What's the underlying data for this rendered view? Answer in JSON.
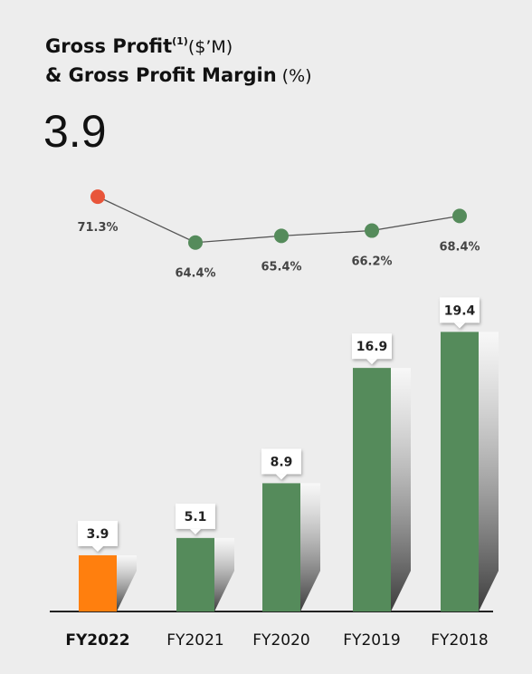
{
  "chart_data": {
    "type": "bar",
    "title": "Gross Profit",
    "title_superscript": "(1)",
    "title_unit": "($’M)",
    "subtitle": "& Gross Profit Margin",
    "subtitle_unit": "(%)",
    "headline": "3.9",
    "categories": [
      "FY2022",
      "FY2021",
      "FY2020",
      "FY2019",
      "FY2018"
    ],
    "ylim": [
      0,
      22
    ],
    "y2lim": [
      60,
      75
    ],
    "series": [
      {
        "name": "Gross Profit",
        "type": "bar",
        "values": [
          3.9,
          5.1,
          8.9,
          16.9,
          19.4
        ],
        "colors": [
          "#ff7f0e",
          "#558b5b",
          "#558b5b",
          "#558b5b",
          "#558b5b"
        ]
      },
      {
        "name": "Gross Profit Margin",
        "type": "line",
        "axis": "y2",
        "color": "#555555",
        "values": [
          71.3,
          64.4,
          65.4,
          66.2,
          68.4
        ],
        "value_labels": [
          "71.3%",
          "64.4%",
          "65.4%",
          "66.2%",
          "68.4%"
        ],
        "colors": [
          "#e8553a",
          "#558b5b",
          "#558b5b",
          "#558b5b",
          "#558b5b"
        ]
      }
    ]
  }
}
